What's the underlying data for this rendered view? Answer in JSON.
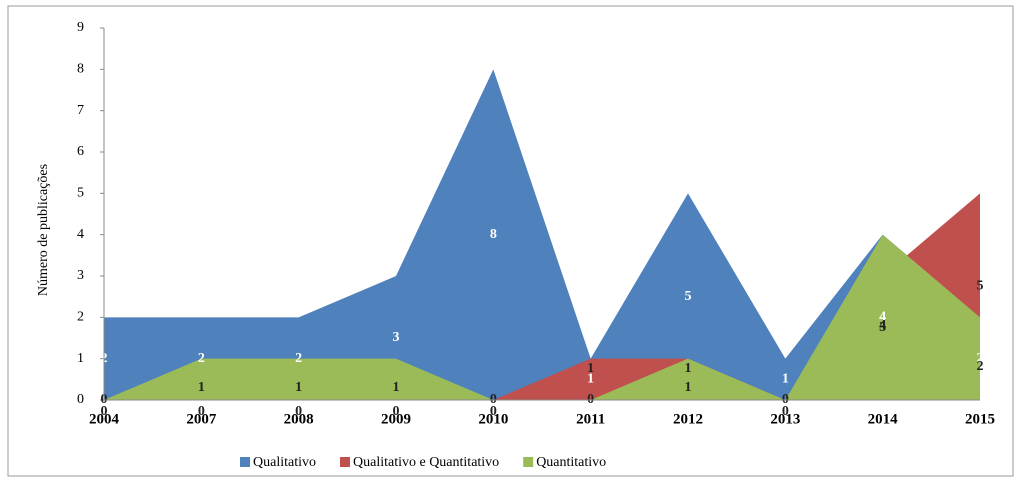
{
  "chart_data": {
    "type": "area",
    "y_label": "Número de publicações",
    "categories": [
      "2004",
      "2007",
      "2008",
      "2009",
      "2010",
      "2011",
      "2012",
      "2013",
      "2014",
      "2015"
    ],
    "series": [
      {
        "name": "Qualitativo",
        "color": "#4f81bd",
        "values": [
          2,
          2,
          2,
          3,
          8,
          1,
          5,
          1,
          4,
          2
        ]
      },
      {
        "name": "Qualitativo e Quantitativo",
        "color": "#c0504d",
        "values": [
          0,
          0,
          0,
          0,
          0,
          1,
          1,
          0,
          3,
          5
        ]
      },
      {
        "name": "Quantitativo",
        "color": "#9bbb59",
        "values": [
          0,
          1,
          1,
          1,
          0,
          0,
          1,
          0,
          4,
          2
        ]
      }
    ],
    "ylim": [
      0,
      9
    ],
    "yticks": [
      0,
      1,
      2,
      3,
      4,
      5,
      6,
      7,
      8,
      9
    ],
    "legend": "bottom"
  }
}
